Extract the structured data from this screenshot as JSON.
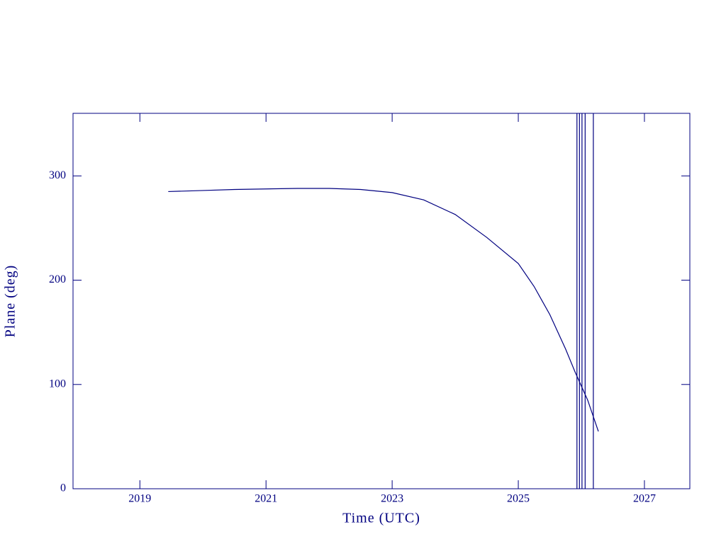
{
  "chart_data": {
    "type": "line",
    "x_label": "Time (UTC)",
    "y_label": "Plane (deg)",
    "x": [
      2019.45,
      2020,
      2020.5,
      2021,
      2021.5,
      2022,
      2022.5,
      2023,
      2023.5,
      2024,
      2024.5,
      2025,
      2025.25,
      2025.5,
      2025.75,
      2025.9,
      2026.1,
      2026.27
    ],
    "series": [
      {
        "color": "#000080",
        "values": [
          285,
          286,
          287,
          287.5,
          288,
          288,
          287,
          284,
          277,
          263,
          241,
          216,
          194,
          167,
          134,
          112,
          85,
          55
        ]
      }
    ],
    "vlines": [
      2025.93,
      2025.97,
      2026.01,
      2026.06,
      2026.19
    ],
    "xlim": [
      2017.94,
      2027.72
    ],
    "ylim": [
      0,
      360
    ],
    "xticks": [
      2019,
      2021,
      2023,
      2025,
      2027
    ],
    "yticks": [
      0,
      100,
      200,
      300
    ]
  }
}
